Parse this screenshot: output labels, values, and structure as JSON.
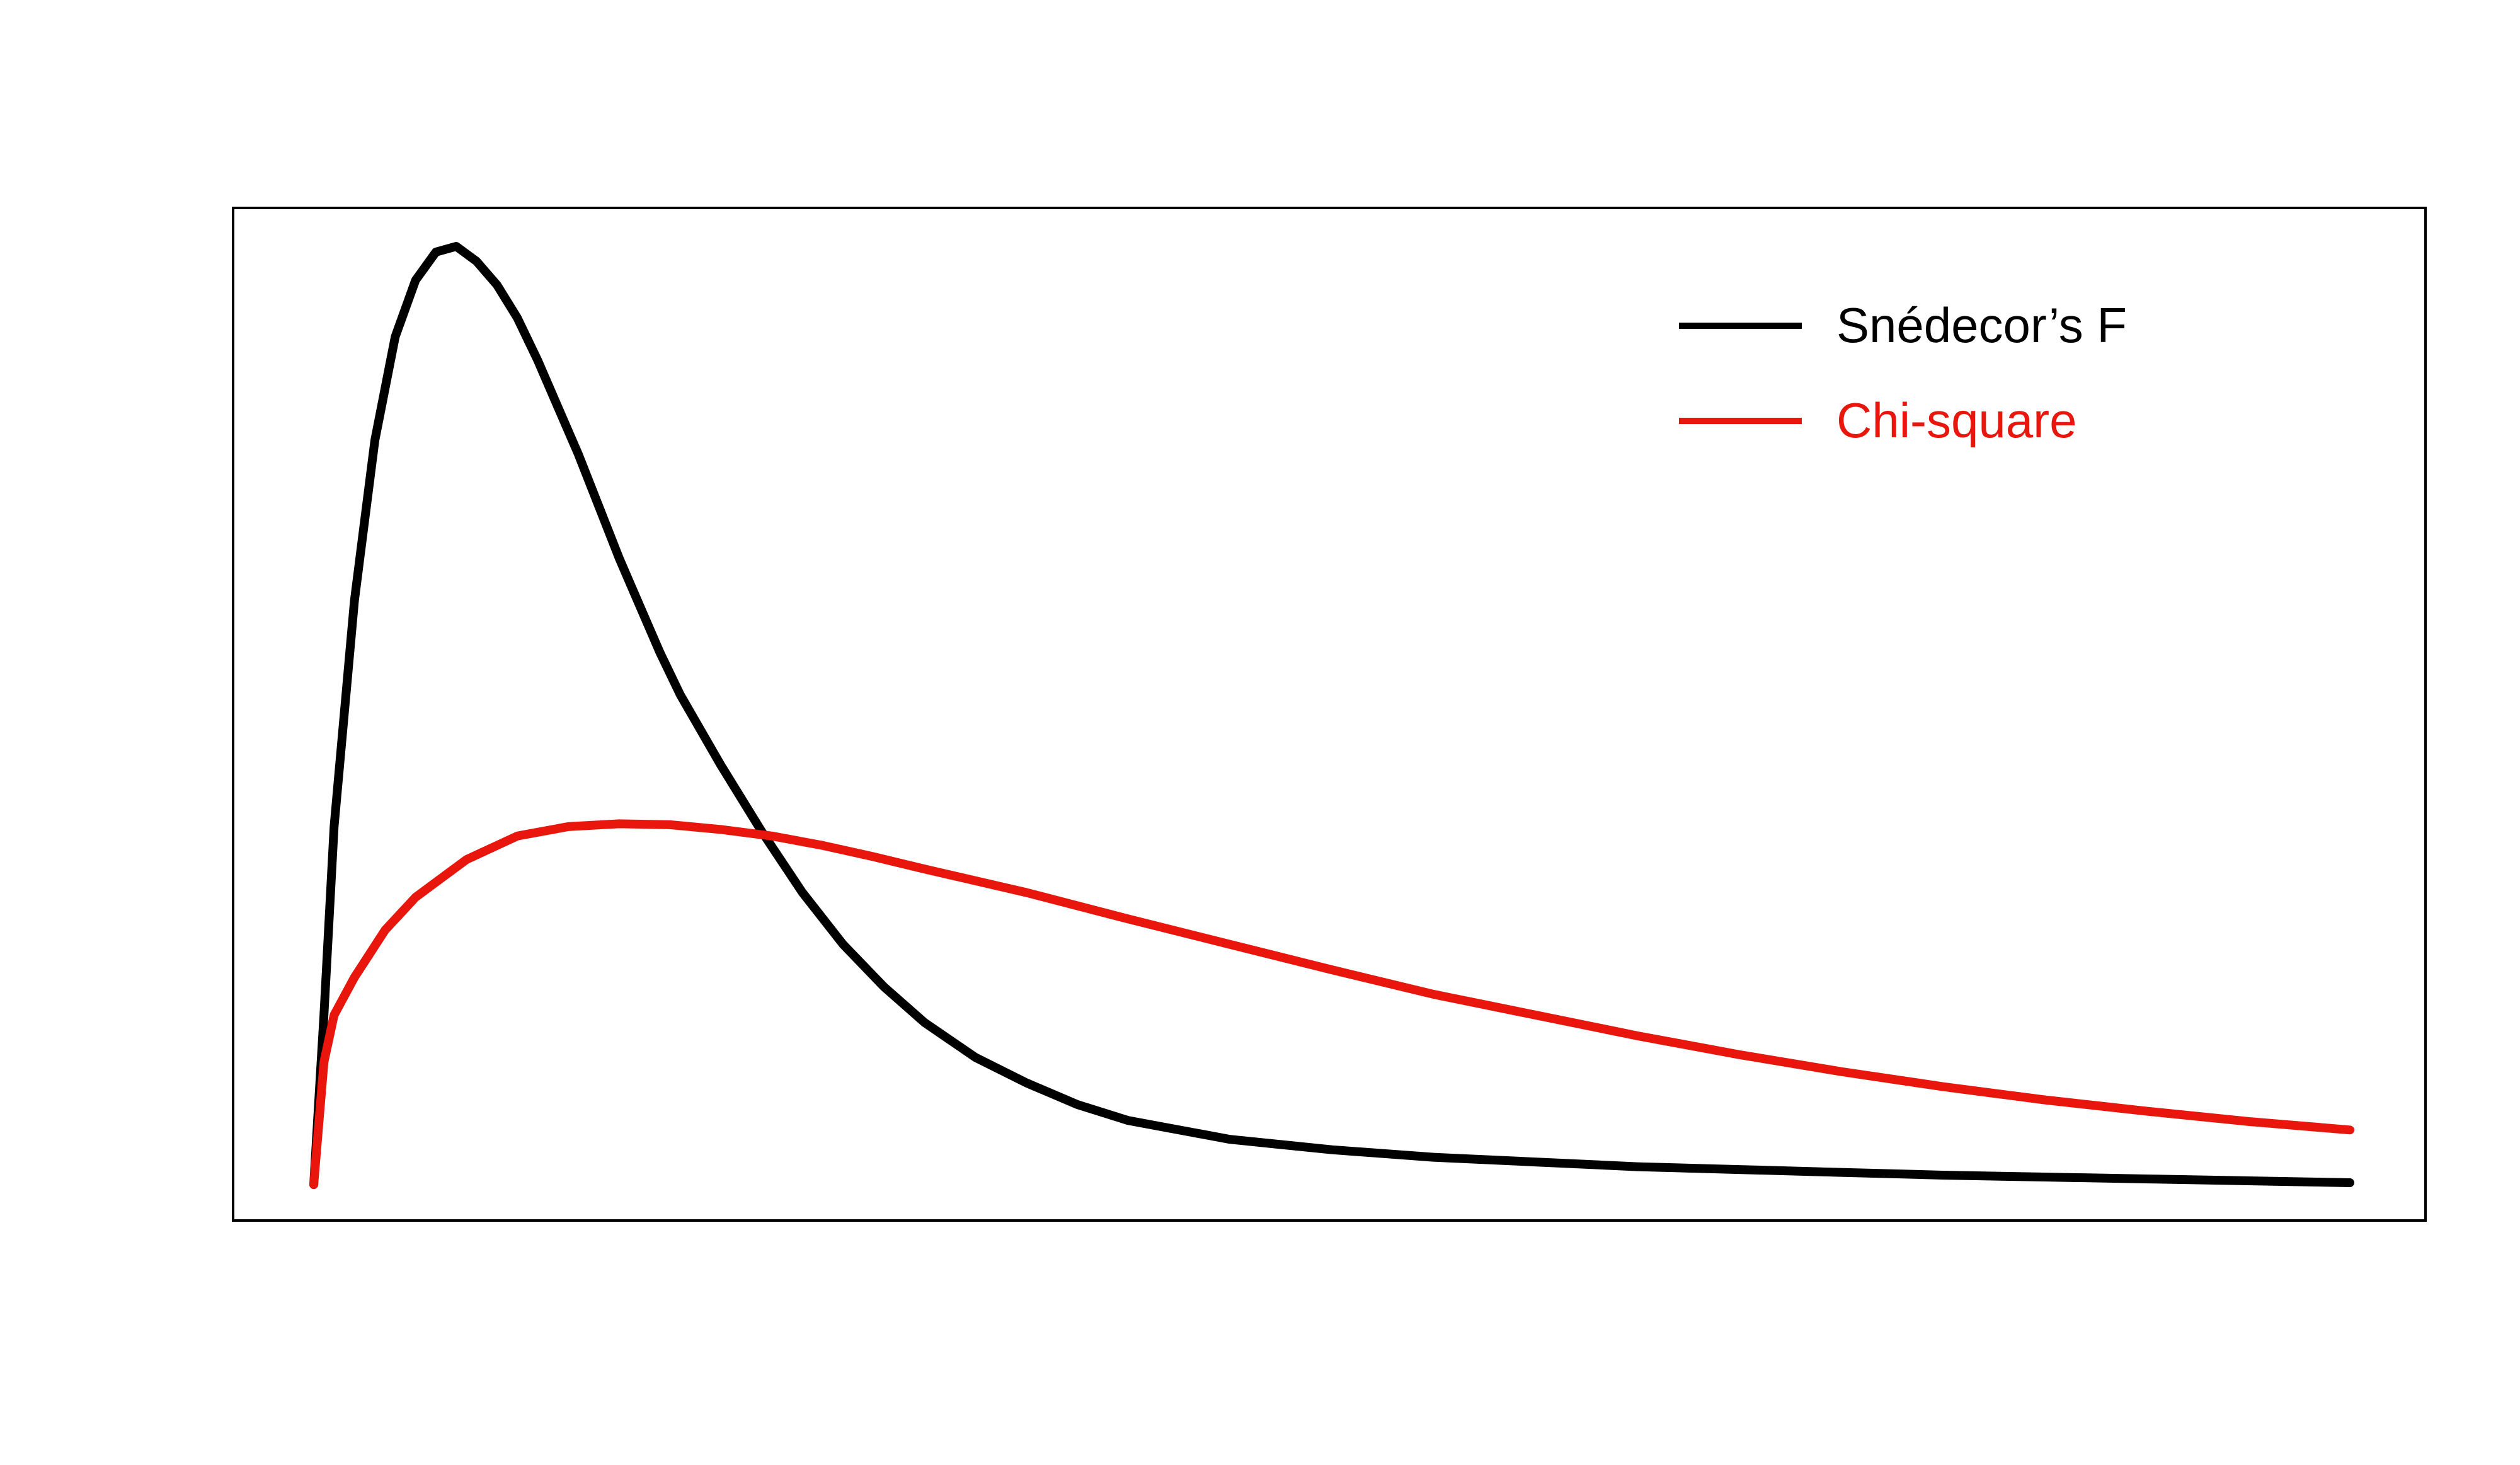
{
  "chart_data": {
    "type": "line",
    "title": "",
    "xlabel": "",
    "ylabel": "",
    "xlim": [
      0,
      10
    ],
    "ylim": [
      0,
      1
    ],
    "grid": false,
    "axes_visible": false,
    "legend_position": "top-right",
    "series": [
      {
        "name": "Snédecor’s F",
        "color": "#000000",
        "x": [
          0,
          0.05,
          0.1,
          0.2,
          0.3,
          0.4,
          0.5,
          0.6,
          0.7,
          0.8,
          0.9,
          1.0,
          1.1,
          1.2,
          1.3,
          1.4,
          1.5,
          1.6,
          1.7,
          1.8,
          2.0,
          2.2,
          2.4,
          2.6,
          2.8,
          3.0,
          3.25,
          3.5,
          3.75,
          4.0,
          4.5,
          5.0,
          5.5,
          6.0,
          6.5,
          7.0,
          7.5,
          8.0,
          8.5,
          9.0,
          9.5,
          10.0
        ],
        "y": [
          0.0,
          0.18,
          0.38,
          0.62,
          0.79,
          0.9,
          0.96,
          0.99,
          0.996,
          0.98,
          0.955,
          0.92,
          0.875,
          0.825,
          0.775,
          0.72,
          0.665,
          0.615,
          0.565,
          0.52,
          0.445,
          0.375,
          0.31,
          0.255,
          0.21,
          0.172,
          0.135,
          0.108,
          0.085,
          0.068,
          0.048,
          0.037,
          0.029,
          0.024,
          0.019,
          0.016,
          0.013,
          0.01,
          0.008,
          0.006,
          0.004,
          0.002
        ]
      },
      {
        "name": "Chi-square",
        "color": "#e8160c",
        "x": [
          0,
          0.05,
          0.1,
          0.2,
          0.35,
          0.5,
          0.75,
          1.0,
          1.25,
          1.5,
          1.75,
          2.0,
          2.25,
          2.5,
          2.75,
          3.0,
          3.5,
          4.0,
          4.5,
          5.0,
          5.5,
          6.0,
          6.5,
          7.0,
          7.5,
          8.0,
          8.5,
          9.0,
          9.5,
          10.0
        ],
        "y": [
          0.0,
          0.13,
          0.18,
          0.22,
          0.27,
          0.305,
          0.345,
          0.37,
          0.38,
          0.383,
          0.382,
          0.377,
          0.37,
          0.36,
          0.348,
          0.335,
          0.31,
          0.282,
          0.255,
          0.228,
          0.202,
          0.18,
          0.158,
          0.138,
          0.12,
          0.104,
          0.09,
          0.078,
          0.067,
          0.058
        ]
      }
    ]
  }
}
